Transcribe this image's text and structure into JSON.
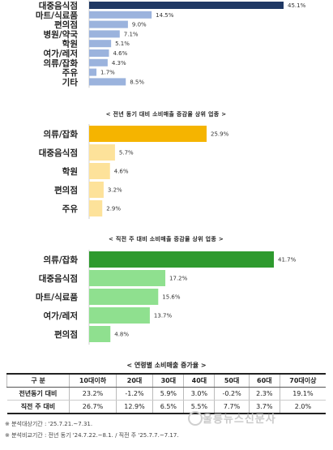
{
  "chart_data": [
    {
      "type": "bar",
      "orientation": "horizontal",
      "title": "",
      "categories": [
        "대중음식점",
        "마트/식료품",
        "편의점",
        "병원/약국",
        "학원",
        "여가/레저",
        "의류/잡화",
        "주유",
        "기타"
      ],
      "values": [
        45.1,
        14.5,
        9.0,
        7.1,
        5.1,
        4.6,
        4.3,
        1.7,
        8.5
      ],
      "labels": [
        "45.1%",
        "14.5%",
        "9.0%",
        "7.1%",
        "5.1%",
        "4.6%",
        "4.3%",
        "1.7%",
        "8.5%"
      ],
      "colors": [
        "#1f3864",
        "#9bb3dd",
        "#9bb3dd",
        "#9bb3dd",
        "#9bb3dd",
        "#9bb3dd",
        "#9bb3dd",
        "#9bb3dd",
        "#9bb3dd"
      ],
      "xlim": [
        0,
        45.1
      ]
    },
    {
      "type": "bar",
      "orientation": "horizontal",
      "title": "< 전년 동기 대비 소비매출 증감율 상위 업종 >",
      "categories": [
        "의류/잡화",
        "대중음식점",
        "학원",
        "편의점",
        "주유"
      ],
      "values": [
        25.9,
        5.7,
        4.6,
        3.2,
        2.9
      ],
      "labels": [
        "25.9%",
        "5.7%",
        "4.6%",
        "3.2%",
        "2.9%"
      ],
      "colors": [
        "#f5b400",
        "#fde29a",
        "#fde29a",
        "#fde29a",
        "#fde29a"
      ],
      "xlim": [
        0,
        25.9
      ]
    },
    {
      "type": "bar",
      "orientation": "horizontal",
      "title": "< 직전 주 대비 소비매출 증감율 상위 업종 >",
      "categories": [
        "의류/잡화",
        "대중음식점",
        "마트/식료품",
        "여가/레저",
        "편의점"
      ],
      "values": [
        41.7,
        17.2,
        15.6,
        13.7,
        4.8
      ],
      "labels": [
        "41.7%",
        "17.2%",
        "15.6%",
        "13.7%",
        "4.8%"
      ],
      "colors": [
        "#2e9a2e",
        "#8fe08f",
        "#8fe08f",
        "#8fe08f",
        "#8fe08f"
      ],
      "xlim": [
        0,
        41.7
      ]
    },
    {
      "type": "table",
      "title": "< 연령별 소비매출 증가율 >",
      "columns": [
        "구 분",
        "10대이하",
        "20대",
        "30대",
        "40대",
        "50대",
        "60대",
        "70대이상"
      ],
      "rows": [
        [
          "전년동기 대비",
          "23.2%",
          "-1.2%",
          "5.9%",
          "3.0%",
          "-0.2%",
          "2.3%",
          "19.1%"
        ],
        [
          "직전 주 대비",
          "26.7%",
          "12.9%",
          "6.5%",
          "5.5%",
          "7.7%",
          "3.7%",
          "2.0%"
        ]
      ]
    }
  ],
  "notes": [
    "※ 분석대상기간 : '25.7.21.~7.31.",
    "※ 분석비교기간 : 전년 동기 '24.7.22.~8.1. / 직전 주 '25.7.7.~7.17."
  ],
  "watermark": "울릉뉴스신문사"
}
